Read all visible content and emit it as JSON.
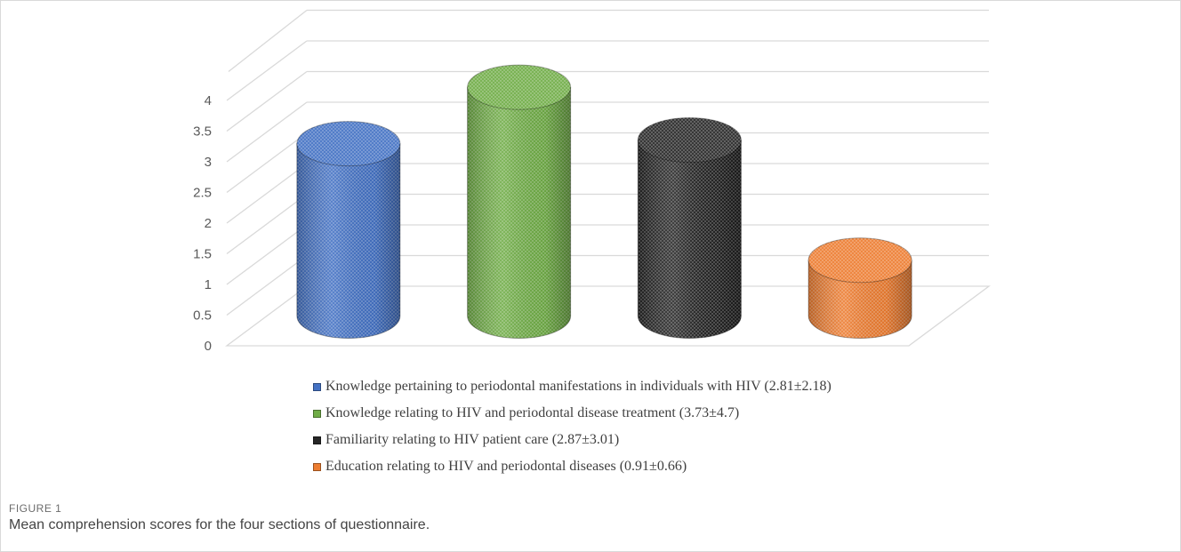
{
  "chart_data": {
    "type": "bar",
    "style": "3d-cylinder",
    "categories": [
      "Knowledge pertaining to periodontal manifestations in individuals with HIV (2.81±2.18)",
      "Knowledge relating to HIV and periodontal disease treatment (3.73±4.7)",
      "Familiarity relating to HIV patient care (2.87±3.01)",
      "Education relating to HIV and periodontal diseases (0.91±0.66)"
    ],
    "values": [
      2.81,
      3.73,
      2.87,
      0.91
    ],
    "colors": [
      "#4472c4",
      "#70ad47",
      "#262626",
      "#ed7d31"
    ],
    "ylim": [
      0,
      4
    ],
    "yticks": [
      "0",
      "0.5",
      "1",
      "1.5",
      "2",
      "2.5",
      "3",
      "3.5",
      "4"
    ],
    "grid": true,
    "legend_position": "bottom"
  },
  "figure": {
    "label": "FIGURE 1",
    "caption": "Mean comprehension scores for the four sections of questionnaire."
  }
}
